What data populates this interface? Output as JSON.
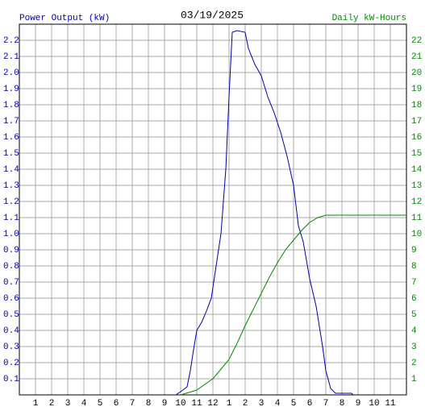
{
  "chart_data": {
    "type": "line",
    "title": "03/19/2025",
    "xlim": [
      0,
      24
    ],
    "xticks": [
      1,
      2,
      3,
      4,
      5,
      6,
      7,
      8,
      9,
      10,
      11,
      12,
      {
        "value": 13,
        "label": "1"
      },
      {
        "value": 14,
        "label": "2"
      },
      {
        "value": 15,
        "label": "3"
      },
      {
        "value": 16,
        "label": "4"
      },
      {
        "value": 17,
        "label": "5"
      },
      {
        "value": 18,
        "label": "6"
      },
      {
        "value": 19,
        "label": "7"
      },
      {
        "value": 20,
        "label": "8"
      },
      {
        "value": 21,
        "label": "9"
      },
      {
        "value": 22,
        "label": "10"
      },
      {
        "value": 23,
        "label": "11"
      }
    ],
    "ylim": [
      0,
      2.3
    ],
    "yticks": [
      0.1,
      0.2,
      0.3,
      0.4,
      0.5,
      0.6,
      0.7,
      0.8,
      0.9,
      {
        "value": 1.0,
        "label": "1.0"
      },
      1.1,
      1.2,
      1.3,
      1.4,
      1.5,
      1.6,
      1.7,
      1.8,
      1.9,
      {
        "value": 2.0,
        "label": "2.0"
      },
      2.1,
      2.2
    ],
    "y2lim": [
      0,
      23
    ],
    "y2ticks": [
      1,
      2,
      3,
      4,
      5,
      6,
      7,
      8,
      9,
      10,
      11,
      12,
      13,
      14,
      15,
      16,
      17,
      18,
      19,
      20,
      21,
      22
    ],
    "grid": true,
    "series": [
      {
        "name": "Power Output (kW)",
        "color": "#0000aa",
        "x": [
          9.7,
          10.0,
          10.4,
          10.6,
          10.8,
          11.0,
          11.3,
          11.6,
          11.9,
          12.2,
          12.5,
          12.8,
          13.0,
          13.2,
          13.5,
          14.0,
          14.2,
          14.6,
          15.0,
          15.4,
          15.8,
          16.2,
          16.6,
          17.0,
          17.3,
          17.6,
          18.0,
          18.4,
          18.8,
          19.0,
          19.3,
          19.6,
          20.6,
          20.7
        ],
        "values": [
          0,
          0.02,
          0.05,
          0.15,
          0.28,
          0.4,
          0.45,
          0.52,
          0.6,
          0.8,
          1.0,
          1.4,
          1.85,
          2.25,
          2.26,
          2.25,
          2.15,
          2.05,
          1.98,
          1.85,
          1.75,
          1.63,
          1.48,
          1.3,
          1.05,
          0.95,
          0.72,
          0.55,
          0.3,
          0.15,
          0.04,
          0.01,
          0.01,
          0
        ]
      },
      {
        "name": "Daily kW-Hours",
        "color": "#008800",
        "axis": "y2",
        "x": [
          10.0,
          11.0,
          12.0,
          12.5,
          13.0,
          13.5,
          14.0,
          14.5,
          15.0,
          15.5,
          16.0,
          16.5,
          17.0,
          17.5,
          18.0,
          18.5,
          19.0,
          24.0
        ],
        "values": [
          0,
          0.3,
          1.0,
          1.6,
          2.2,
          3.2,
          4.3,
          5.3,
          6.3,
          7.3,
          8.2,
          9.0,
          9.6,
          10.2,
          10.7,
          11.0,
          11.15,
          11.15
        ]
      }
    ]
  }
}
